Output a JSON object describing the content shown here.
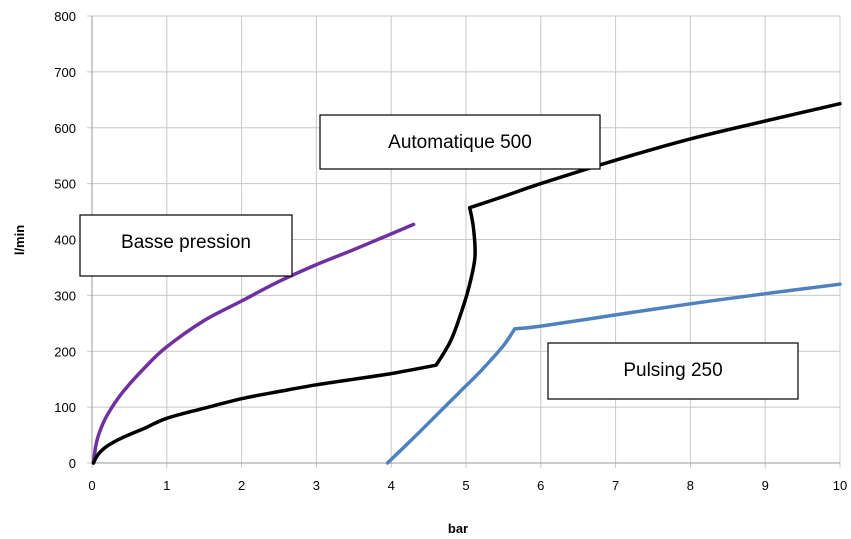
{
  "chart_data": {
    "type": "line",
    "xlabel": "bar",
    "ylabel": "l/min",
    "xlim": [
      0,
      10
    ],
    "ylim": [
      0,
      800
    ],
    "x_ticks": [
      "0",
      "1",
      "2",
      "3",
      "4",
      "5",
      "6",
      "7",
      "8",
      "9",
      "10"
    ],
    "y_ticks": [
      "0",
      "100",
      "200",
      "300",
      "400",
      "500",
      "600",
      "700",
      "800"
    ],
    "grid": true,
    "series": [
      {
        "name": "Basse pression",
        "color": "#7030A0",
        "points": [
          [
            0.02,
            0
          ],
          [
            0.05,
            30
          ],
          [
            0.1,
            55
          ],
          [
            0.2,
            85
          ],
          [
            0.4,
            125
          ],
          [
            0.7,
            170
          ],
          [
            1.0,
            208
          ],
          [
            1.5,
            255
          ],
          [
            2.0,
            290
          ],
          [
            2.5,
            325
          ],
          [
            3.0,
            355
          ],
          [
            3.5,
            382
          ],
          [
            4.0,
            410
          ],
          [
            4.3,
            427
          ]
        ]
      },
      {
        "name": "Automatique 500",
        "color": "#000000",
        "points": [
          [
            0.02,
            0
          ],
          [
            0.08,
            15
          ],
          [
            0.2,
            30
          ],
          [
            0.4,
            45
          ],
          [
            0.7,
            62
          ],
          [
            1.0,
            80
          ],
          [
            1.5,
            98
          ],
          [
            2.0,
            115
          ],
          [
            2.5,
            128
          ],
          [
            3.0,
            140
          ],
          [
            3.5,
            150
          ],
          [
            4.0,
            160
          ],
          [
            4.6,
            175
          ],
          [
            4.8,
            220
          ],
          [
            4.95,
            275
          ],
          [
            5.05,
            320
          ],
          [
            5.12,
            370
          ],
          [
            5.1,
            420
          ],
          [
            5.05,
            457
          ],
          [
            5.5,
            477
          ],
          [
            6.0,
            500
          ],
          [
            7.0,
            542
          ],
          [
            8.0,
            580
          ],
          [
            9.0,
            612
          ],
          [
            10.0,
            643
          ]
        ]
      },
      {
        "name": "Pulsing 250",
        "color": "#4F81BD",
        "points": [
          [
            3.95,
            0
          ],
          [
            4.3,
            45
          ],
          [
            4.6,
            85
          ],
          [
            4.9,
            125
          ],
          [
            5.2,
            165
          ],
          [
            5.5,
            210
          ],
          [
            5.65,
            240
          ],
          [
            6.0,
            245
          ],
          [
            7.0,
            265
          ],
          [
            8.0,
            285
          ],
          [
            9.0,
            303
          ],
          [
            10.0,
            320
          ]
        ]
      }
    ],
    "annotations": [
      "Automatique 500",
      "Basse pression",
      "Pulsing 250"
    ]
  }
}
